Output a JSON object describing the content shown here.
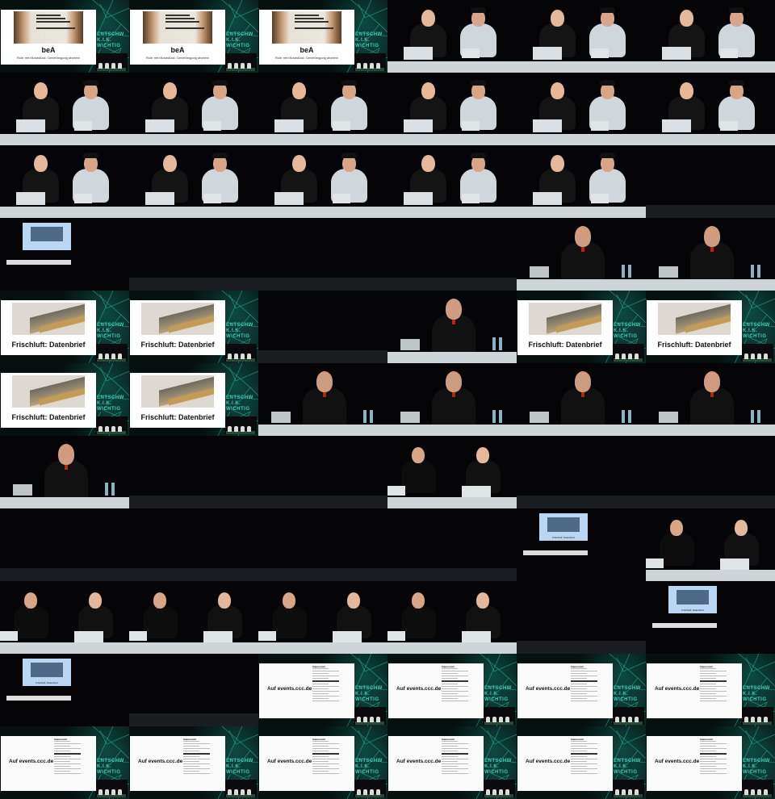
{
  "cells": [
    {
      "type": "slide-bea",
      "title": "beA",
      "subtitle": "Rohr mit Mundstück: Genehmigung abzeihn"
    },
    {
      "type": "slide-bea",
      "title": "beA",
      "subtitle": "Rohr mit Mundstück: Genehmigung abzeihn"
    },
    {
      "type": "slide-bea",
      "title": "beA",
      "subtitle": "Rohr mit Mundstück: Genehmigung abzeihn"
    },
    {
      "type": "duo"
    },
    {
      "type": "duo"
    },
    {
      "type": "duo"
    },
    {
      "type": "duo"
    },
    {
      "type": "duo"
    },
    {
      "type": "duo"
    },
    {
      "type": "duo"
    },
    {
      "type": "duo"
    },
    {
      "type": "duo"
    },
    {
      "type": "duo"
    },
    {
      "type": "duo"
    },
    {
      "type": "duo"
    },
    {
      "type": "duo"
    },
    {
      "type": "duo"
    },
    {
      "type": "panel"
    },
    {
      "type": "proj"
    },
    {
      "type": "panel"
    },
    {
      "type": "panel"
    },
    {
      "type": "panel"
    },
    {
      "type": "solo"
    },
    {
      "type": "solo"
    },
    {
      "type": "slide-frisch",
      "title": "Frischluft: Datenbrief"
    },
    {
      "type": "slide-frisch",
      "title": "Frischluft: Datenbrief"
    },
    {
      "type": "panel"
    },
    {
      "type": "solo"
    },
    {
      "type": "slide-frisch",
      "title": "Frischluft: Datenbrief"
    },
    {
      "type": "slide-frisch",
      "title": "Frischluft: Datenbrief"
    },
    {
      "type": "slide-frisch",
      "title": "Frischluft: Datenbrief"
    },
    {
      "type": "slide-frisch",
      "title": "Frischluft: Datenbrief"
    },
    {
      "type": "solo"
    },
    {
      "type": "solo"
    },
    {
      "type": "solo"
    },
    {
      "type": "solo"
    },
    {
      "type": "solo"
    },
    {
      "type": "panel"
    },
    {
      "type": "panel"
    },
    {
      "type": "duo2"
    },
    {
      "type": "panel"
    },
    {
      "type": "panel"
    },
    {
      "type": "panel"
    },
    {
      "type": "panel"
    },
    {
      "type": "panel"
    },
    {
      "type": "panel"
    },
    {
      "type": "proj",
      "title": "Frischluft: Datenbrief"
    },
    {
      "type": "duo2"
    },
    {
      "type": "duo2"
    },
    {
      "type": "duo2"
    },
    {
      "type": "duo2"
    },
    {
      "type": "duo2"
    },
    {
      "type": "panel"
    },
    {
      "type": "proj",
      "title": "Frischluft: Datenbrief"
    },
    {
      "type": "proj",
      "title": "Frischluft: Datenbrief"
    },
    {
      "type": "panel"
    },
    {
      "type": "slide-imp",
      "title": "Auf events.ccc.de",
      "heading": "Impressum"
    },
    {
      "type": "slide-imp",
      "title": "Auf events.ccc.de",
      "heading": "Impressum"
    },
    {
      "type": "slide-imp",
      "title": "Auf events.ccc.de",
      "heading": "Impressum"
    },
    {
      "type": "slide-imp",
      "title": "Auf events.ccc.de",
      "heading": "Impressum"
    },
    {
      "type": "slide-imp",
      "title": "Auf events.ccc.de",
      "heading": "Impressum"
    },
    {
      "type": "slide-imp",
      "title": "Auf events.ccc.de",
      "heading": "Impressum"
    },
    {
      "type": "slide-imp",
      "title": "Auf events.ccc.de",
      "heading": "Impressum"
    },
    {
      "type": "slide-imp",
      "title": "Auf events.ccc.de",
      "heading": "Impressum"
    },
    {
      "type": "slide-imp",
      "title": "Auf events.ccc.de",
      "heading": "Impressum"
    },
    {
      "type": "slide-imp",
      "title": "Auf events.ccc.de",
      "heading": "Impressum"
    }
  ],
  "logo_text": "ENTSCHWÖRUNG K.I.K. WICHTIGES",
  "colors": {
    "teal": "#3ad1b8",
    "desk": "#cdd5d8",
    "screen": "#b9d6f3"
  }
}
